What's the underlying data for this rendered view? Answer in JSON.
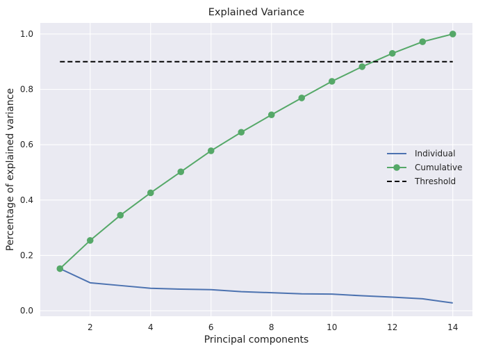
{
  "chart_data": {
    "type": "line",
    "title": "Explained Variance",
    "xlabel": "Principal components",
    "ylabel": "Percentage of explained variance",
    "xlim": [
      0.35,
      14.65
    ],
    "ylim": [
      -0.02,
      1.04
    ],
    "xticks": [
      2,
      4,
      6,
      8,
      10,
      12,
      14
    ],
    "yticks": [
      0.0,
      0.2,
      0.4,
      0.6,
      0.8,
      1.0
    ],
    "ytick_labels": [
      "0.0",
      "0.2",
      "0.4",
      "0.6",
      "0.8",
      "1.0"
    ],
    "grid": true,
    "legend_position": "center-right",
    "x": [
      1,
      2,
      3,
      4,
      5,
      6,
      7,
      8,
      9,
      10,
      11,
      12,
      13,
      14
    ],
    "series": [
      {
        "name": "Individual",
        "color": "#4c72b0",
        "style": "line",
        "values": [
          0.152,
          0.101,
          0.091,
          0.081,
          0.078,
          0.076,
          0.069,
          0.065,
          0.061,
          0.06,
          0.054,
          0.049,
          0.043,
          0.028
        ]
      },
      {
        "name": "Cumulative",
        "color": "#55a868",
        "style": "line-markers",
        "values": [
          0.152,
          0.254,
          0.345,
          0.426,
          0.502,
          0.578,
          0.645,
          0.708,
          0.769,
          0.829,
          0.882,
          0.93,
          0.972,
          1.0
        ]
      },
      {
        "name": "Threshold",
        "color": "#000000",
        "style": "dashed",
        "values": [
          0.9,
          0.9,
          0.9,
          0.9,
          0.9,
          0.9,
          0.9,
          0.9,
          0.9,
          0.9,
          0.9,
          0.9,
          0.9,
          0.9
        ]
      }
    ]
  },
  "colors": {
    "plot_background": "#eaeaf2",
    "grid": "#ffffff"
  }
}
